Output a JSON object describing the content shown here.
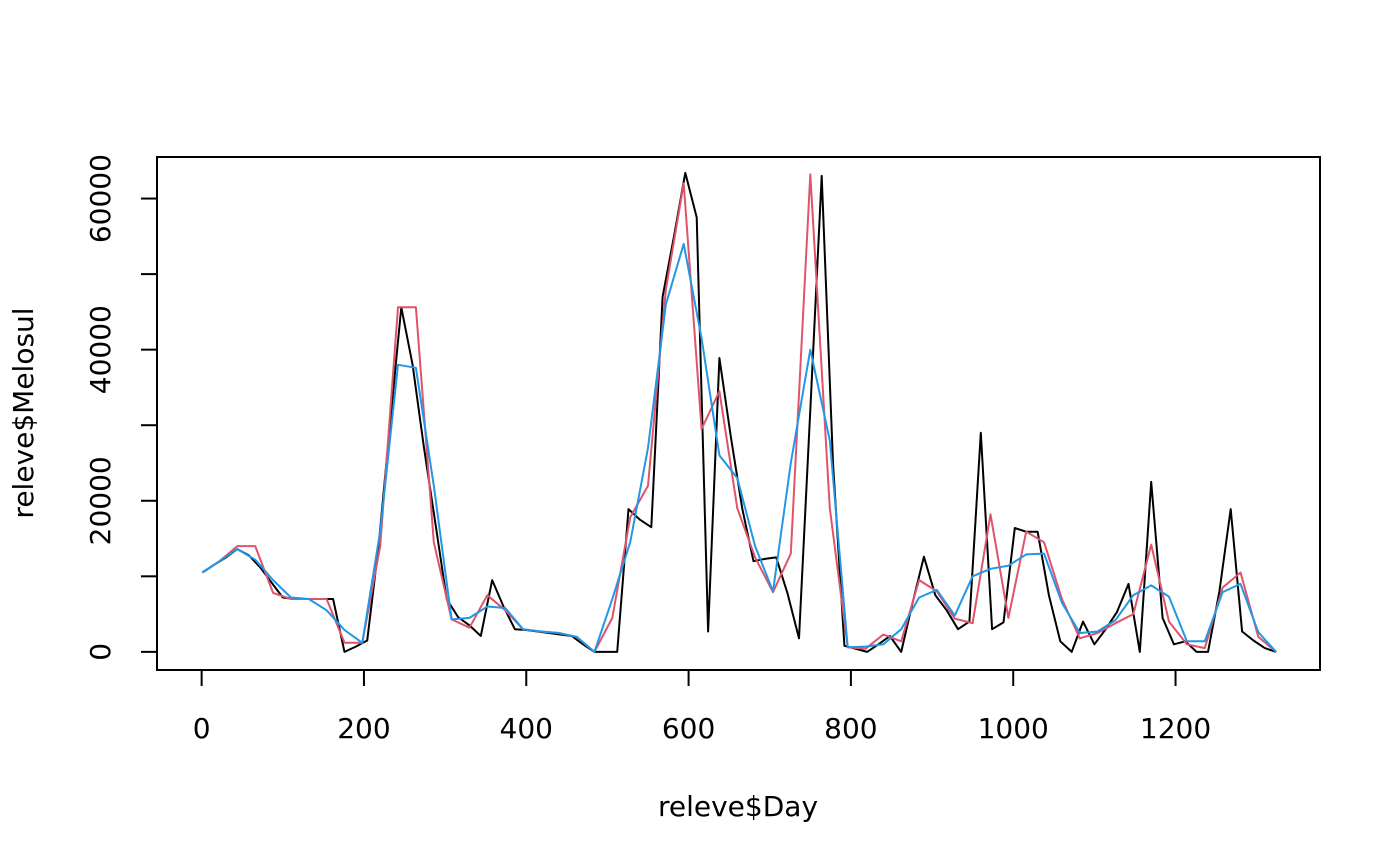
{
  "chart_data": {
    "type": "line",
    "title": "",
    "xlabel": "releve$Day",
    "ylabel": "releve$Melosul",
    "xlim": [
      -55,
      1378
    ],
    "ylim": [
      -2400,
      65500
    ],
    "x_ticks": [
      0,
      200,
      400,
      600,
      800,
      1000,
      1200
    ],
    "x_tick_labels": [
      "0",
      "200",
      "400",
      "600",
      "800",
      "1000",
      "1200"
    ],
    "y_ticks": [
      0,
      10000,
      20000,
      30000,
      40000,
      50000,
      60000
    ],
    "y_tick_labels": [
      "0",
      "",
      "20000",
      "",
      "40000",
      "",
      "60000"
    ],
    "grid": false,
    "legend": "none",
    "series": [
      {
        "color": "#000000",
        "x": [
          1,
          15,
          30,
          44,
          58,
          72,
          86,
          100,
          114,
          128,
          142,
          156,
          162,
          176,
          190,
          204,
          218,
          232,
          246,
          260,
          274,
          288,
          302,
          316,
          330,
          344,
          358,
          372,
          386,
          400,
          414,
          428,
          442,
          456,
          470,
          484,
          498,
          512,
          526,
          540,
          554,
          568,
          582,
          596,
          610,
          624,
          638,
          652,
          666,
          680,
          694,
          708,
          722,
          736,
          750,
          764,
          778,
          792,
          806,
          820,
          834,
          848,
          862,
          876,
          890,
          904,
          918,
          932,
          946,
          960,
          974,
          988,
          1002,
          1016,
          1030,
          1044,
          1058,
          1072,
          1086,
          1100,
          1114,
          1128,
          1142,
          1156,
          1170,
          1184,
          1198,
          1212,
          1226,
          1240,
          1254,
          1268,
          1282,
          1296,
          1310,
          1324
        ],
        "y": [
          10500,
          11500,
          12500,
          13600,
          12800,
          11200,
          9200,
          7200,
          7000,
          7000,
          7000,
          7000,
          7000,
          0,
          700,
          1500,
          14000,
          30000,
          45600,
          38000,
          27000,
          17000,
          7000,
          4600,
          3500,
          2100,
          9500,
          6000,
          3000,
          2900,
          2700,
          2500,
          2300,
          2100,
          1000,
          0,
          0,
          0,
          18900,
          17500,
          16500,
          47000,
          55000,
          63400,
          57500,
          2700,
          38900,
          28500,
          19000,
          12000,
          12300,
          12500,
          7700,
          1800,
          32000,
          63000,
          25000,
          800,
          400,
          0,
          1000,
          2100,
          0,
          6500,
          12600,
          7500,
          5500,
          3000,
          4000,
          29000,
          3000,
          3900,
          16400,
          15900,
          15900,
          7500,
          1400,
          0,
          4000,
          1000,
          3000,
          5300,
          9000,
          0,
          22500,
          4500,
          1000,
          1400,
          0,
          0,
          8000,
          18900,
          2700,
          1500,
          500,
          0
        ]
      },
      {
        "color": "#DF536B",
        "x": [
          1,
          22,
          44,
          66,
          88,
          110,
          132,
          154,
          176,
          198,
          220,
          242,
          264,
          286,
          308,
          330,
          352,
          374,
          396,
          418,
          440,
          462,
          484,
          506,
          528,
          550,
          572,
          594,
          616,
          638,
          660,
          682,
          704,
          726,
          750,
          774,
          796,
          818,
          840,
          862,
          884,
          906,
          928,
          950,
          972,
          994,
          1016,
          1038,
          1060,
          1082,
          1104,
          1126,
          1148,
          1170,
          1192,
          1214,
          1236,
          1258,
          1280,
          1302,
          1324
        ],
        "y": [
          10500,
          12000,
          14000,
          14000,
          7800,
          7000,
          7000,
          7000,
          1200,
          1200,
          14000,
          45600,
          45600,
          14500,
          4300,
          3200,
          7500,
          5500,
          3000,
          2700,
          2500,
          2000,
          0,
          4500,
          17800,
          22000,
          48000,
          62000,
          29500,
          34500,
          19000,
          12500,
          7900,
          13000,
          63200,
          19000,
          600,
          400,
          2300,
          1400,
          9500,
          8000,
          4400,
          3800,
          18200,
          4500,
          15900,
          14500,
          7000,
          1800,
          2500,
          3800,
          5000,
          14200,
          4000,
          1000,
          500,
          8500,
          10500,
          2000,
          0
        ]
      },
      {
        "color": "#2297E6",
        "x": [
          1,
          22,
          44,
          66,
          88,
          110,
          132,
          154,
          176,
          198,
          220,
          242,
          264,
          286,
          308,
          330,
          352,
          374,
          396,
          418,
          440,
          462,
          484,
          506,
          528,
          550,
          572,
          594,
          616,
          638,
          660,
          682,
          704,
          726,
          750,
          774,
          796,
          818,
          840,
          862,
          884,
          906,
          928,
          950,
          972,
          994,
          1016,
          1038,
          1060,
          1082,
          1104,
          1126,
          1148,
          1170,
          1192,
          1214,
          1236,
          1258,
          1280,
          1302,
          1324
        ],
        "y": [
          10500,
          12000,
          13600,
          12200,
          9500,
          7200,
          7000,
          5500,
          2900,
          1200,
          16000,
          38000,
          37600,
          22000,
          4300,
          4500,
          6000,
          5800,
          3000,
          2700,
          2500,
          2000,
          0,
          7000,
          14500,
          27000,
          46000,
          54000,
          41500,
          26000,
          23000,
          14000,
          8000,
          25000,
          40000,
          28000,
          600,
          700,
          1000,
          3000,
          7200,
          8200,
          4800,
          10000,
          11000,
          11400,
          12900,
          13000,
          6500,
          2500,
          2700,
          4200,
          7500,
          8800,
          7300,
          1400,
          1400,
          7900,
          9000,
          2600,
          0
        ]
      }
    ]
  }
}
